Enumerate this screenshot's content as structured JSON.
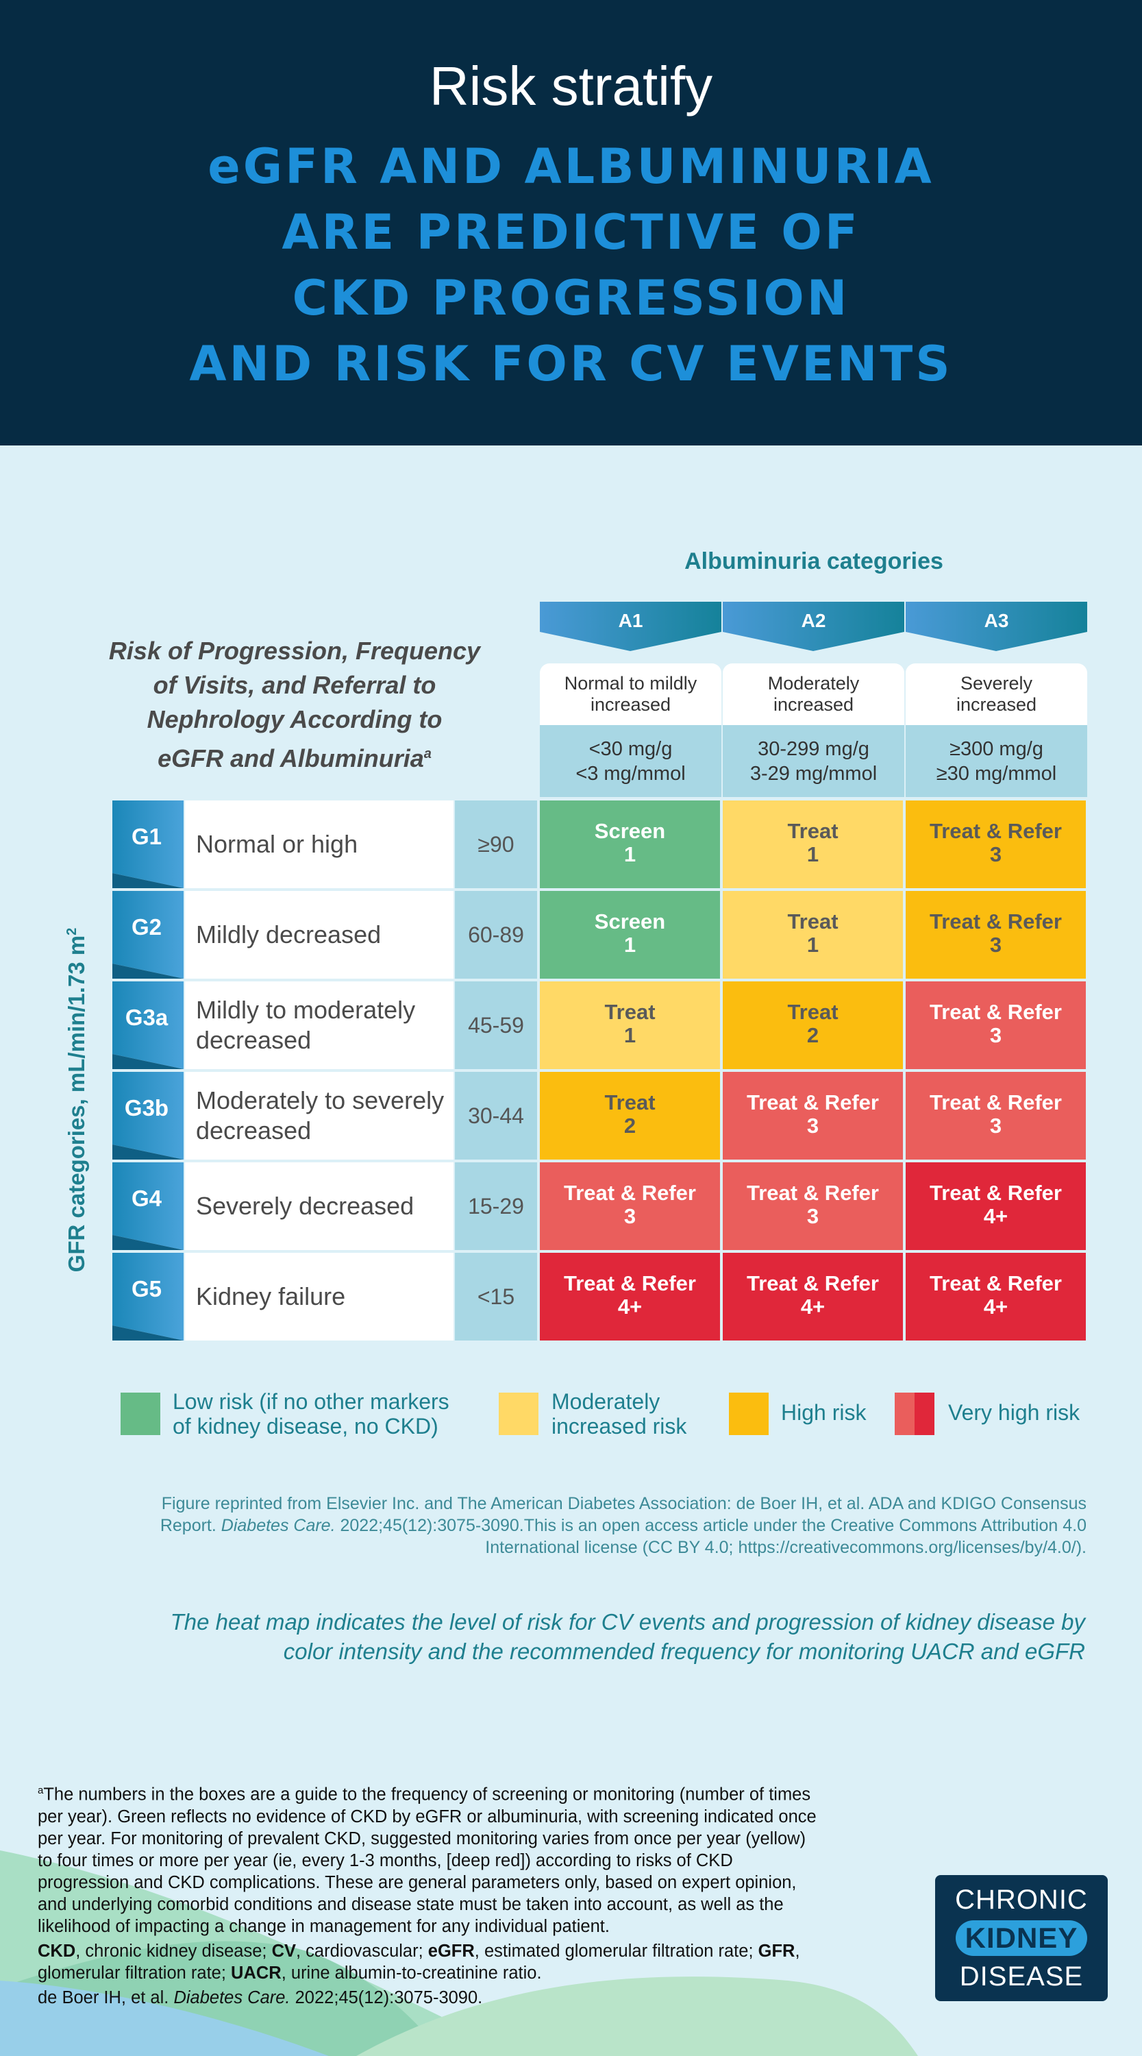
{
  "header": {
    "pretitle": "Risk stratify",
    "headline": [
      "eGFR AND ALBUMINURIA",
      "ARE PREDICTIVE OF",
      "CKD PROGRESSION",
      "AND RISK FOR CV EVENTS"
    ]
  },
  "chart_data": {
    "type": "table",
    "albuminuria_title": "Albuminuria categories",
    "table_title": "Risk of Progression, Frequency of Visits, and Referral to Nephrology According to eGFR and Albuminuria",
    "table_title_lines": [
      "Risk of Progression, Frequency",
      "of Visits, and Referral to",
      "Nephrology According to",
      "eGFR and Albuminuria"
    ],
    "table_title_sup": "a",
    "gfr_axis_label": "GFR categories, mL/min/1.73 m",
    "gfr_axis_sup": "2",
    "columns": [
      {
        "code": "A1",
        "desc": [
          "Normal to mildly",
          "increased"
        ],
        "range": [
          "<30 mg/g",
          "<3 mg/mmol"
        ]
      },
      {
        "code": "A2",
        "desc": [
          "Moderately",
          "increased"
        ],
        "range": [
          "30-299 mg/g",
          "3-29 mg/mmol"
        ]
      },
      {
        "code": "A3",
        "desc": [
          "Severely",
          "increased"
        ],
        "range": [
          "≥300 mg/g",
          "≥30 mg/mmol"
        ]
      }
    ],
    "rows": [
      {
        "code": "G1",
        "desc": [
          "Normal or high"
        ],
        "range": "≥90",
        "cells": [
          {
            "action": "Screen",
            "freq": "1",
            "risk": "low"
          },
          {
            "action": "Treat",
            "freq": "1",
            "risk": "moderate"
          },
          {
            "action": "Treat & Refer",
            "freq": "3",
            "risk": "high"
          }
        ]
      },
      {
        "code": "G2",
        "desc": [
          "Mildly decreased"
        ],
        "range": "60-89",
        "cells": [
          {
            "action": "Screen",
            "freq": "1",
            "risk": "low"
          },
          {
            "action": "Treat",
            "freq": "1",
            "risk": "moderate"
          },
          {
            "action": "Treat & Refer",
            "freq": "3",
            "risk": "high"
          }
        ]
      },
      {
        "code": "G3a",
        "desc": [
          "Mildly to moderately",
          "decreased"
        ],
        "range": "45-59",
        "cells": [
          {
            "action": "Treat",
            "freq": "1",
            "risk": "moderate"
          },
          {
            "action": "Treat",
            "freq": "2",
            "risk": "high"
          },
          {
            "action": "Treat & Refer",
            "freq": "3",
            "risk": "very-high"
          }
        ]
      },
      {
        "code": "G3b",
        "desc": [
          "Moderately to severely",
          "decreased"
        ],
        "range": "30-44",
        "cells": [
          {
            "action": "Treat",
            "freq": "2",
            "risk": "high"
          },
          {
            "action": "Treat & Refer",
            "freq": "3",
            "risk": "very-high"
          },
          {
            "action": "Treat & Refer",
            "freq": "3",
            "risk": "very-high"
          }
        ]
      },
      {
        "code": "G4",
        "desc": [
          "Severely decreased"
        ],
        "range": "15-29",
        "cells": [
          {
            "action": "Treat & Refer",
            "freq": "3",
            "risk": "very-high"
          },
          {
            "action": "Treat & Refer",
            "freq": "3",
            "risk": "very-high"
          },
          {
            "action": "Treat & Refer",
            "freq": "4+",
            "risk": "very-high-deep"
          }
        ]
      },
      {
        "code": "G5",
        "desc": [
          "Kidney failure"
        ],
        "range": "<15",
        "cells": [
          {
            "action": "Treat & Refer",
            "freq": "4+",
            "risk": "very-high-deep"
          },
          {
            "action": "Treat & Refer",
            "freq": "4+",
            "risk": "very-high-deep"
          },
          {
            "action": "Treat & Refer",
            "freq": "4+",
            "risk": "very-high-deep"
          }
        ]
      }
    ],
    "colors": {
      "low": "#66bb86",
      "moderate": "#ffd966",
      "high": "#fbbd0f",
      "very-high": "#ea5e5c",
      "very-high-deep": "#e0273a"
    }
  },
  "legend": [
    {
      "label": [
        "Low risk (if no other markers",
        "of kidney disease, no CKD)"
      ],
      "color": "#66bb86"
    },
    {
      "label": [
        "Moderately",
        "increased risk"
      ],
      "color": "#ffd966"
    },
    {
      "label": [
        "High risk"
      ],
      "color": "#fbbd0f"
    },
    {
      "label": [
        "Very high risk"
      ],
      "color": "#ea5e5c",
      "color2": "#e0273a"
    }
  ],
  "citation": {
    "line1": "Figure reprinted from Elsevier Inc. and The American Diabetes Association: de Boer IH, et al. ADA and KDIGO Consensus",
    "line2_pre": "Report. ",
    "line2_journal": "Diabetes Care.",
    "line2_post": " 2022;45(12):3075-3090.This is an open access article under the Creative Commons Attribution 4.0",
    "line3": "International license (CC BY 4.0; https://creativecommons.org/licenses/by/4.0/)."
  },
  "heatmap_note": [
    "The heat map indicates the level of risk for CV events and progression of kidney disease by",
    "color intensity and the recommended frequency for monitoring UACR and eGFR"
  ],
  "footnote": {
    "sup": "a",
    "lines": [
      "The numbers in the boxes are a guide to the frequency of screening or monitoring (number of times",
      "per year). Green reflects no evidence of CKD by eGFR or albuminuria, with screening indicated once",
      "per year. For monitoring of prevalent CKD, suggested monitoring varies from once per year (yellow)",
      "to four times or more per year (ie, every 1-3 months, [deep red]) according to risks of CKD",
      "progression and CKD complications. These are general parameters only, based on expert opinion,",
      "and underlying comorbid conditions and disease state must be taken into account, as well as the",
      "likelihood of impacting a change in management for any individual patient."
    ],
    "abbreviations": [
      {
        "term": "CKD",
        "def": ", chronic kidney disease; "
      },
      {
        "term": "CV",
        "def": ", cardiovascular; "
      },
      {
        "term": "eGFR",
        "def": ", estimated glomerular filtration rate; "
      },
      {
        "term": "GFR",
        "def": ","
      },
      {
        "term": "",
        "def": "glomerular filtration rate; "
      },
      {
        "term": "UACR",
        "def": ", urine albumin-to-creatinine ratio."
      }
    ],
    "reference_pre": "de Boer IH, et al. ",
    "reference_journal": "Diabetes Care.",
    "reference_post": " 2022;45(12):3075-3090."
  },
  "logo": {
    "line1": "CHRONIC",
    "line2": "KIDNEY",
    "line3": "DISEASE"
  }
}
